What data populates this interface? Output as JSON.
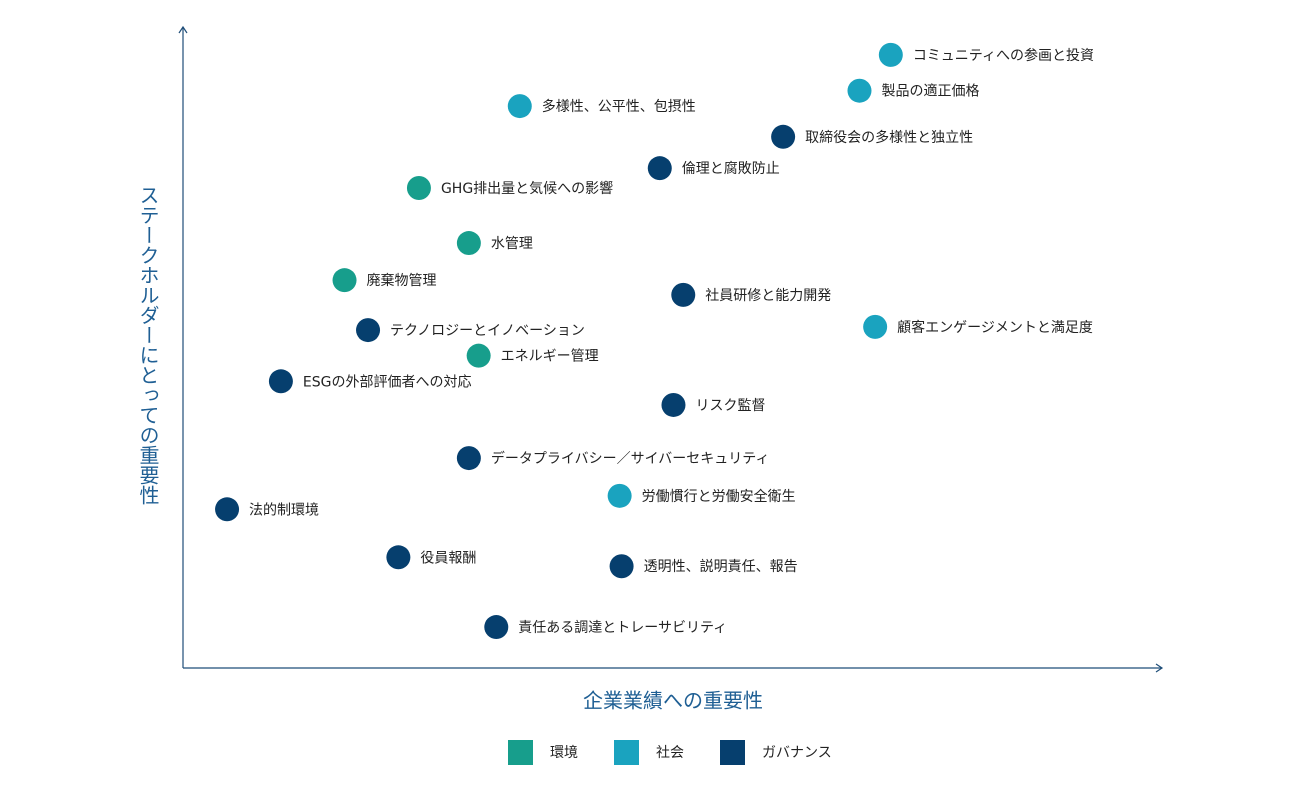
{
  "chart_data": {
    "type": "scatter",
    "x_label": "企業業績への重要性",
    "y_label": "ステークホルダーにとっての重要性",
    "xlim": [
      0,
      100
    ],
    "ylim": [
      0,
      100
    ],
    "series": [
      {
        "name": "環境",
        "color": "#179e8c",
        "x": [
          24.1,
          29.2,
          16.5,
          30.2
        ],
        "values": [
          75.0,
          66.4,
          60.6,
          48.8
        ],
        "labels": [
          "GHG排出量と気候への影響",
          "水管理",
          "廃棄物管理",
          "エネルギー管理"
        ]
      },
      {
        "name": "社会",
        "color": "#1aa3bf",
        "x": [
          72.3,
          69.1,
          34.4,
          70.7,
          44.6
        ],
        "values": [
          95.8,
          90.2,
          87.8,
          53.3,
          26.9
        ],
        "labels": [
          "コミュニティへの参画と投資",
          "製品の適正価格",
          "多様性、公平性、包摂性",
          "顧客エンゲージメントと満足度",
          "労働慣行と労働安全衛生"
        ]
      },
      {
        "name": "ガバナンス",
        "color": "#063f6e",
        "x": [
          61.3,
          48.7,
          51.1,
          18.9,
          10.0,
          50.1,
          29.2,
          4.5,
          22.0,
          44.8,
          32.0
        ],
        "values": [
          83.0,
          78.1,
          58.3,
          52.8,
          44.8,
          41.1,
          32.8,
          24.8,
          17.3,
          15.9,
          6.4
        ],
        "labels": [
          "取締役会の多様性と独立性",
          "倫理と腐敗防止",
          "社員研修と能力開発",
          "テクノロジーとイノベーション",
          "ESGの外部評価者への対応",
          "リスク監督",
          "データプライバシー／サイバーセキュリティ",
          "法的制環境",
          "役員報酬",
          "透明性、説明責任、報告",
          "責任ある調達とトレーサビリティ"
        ]
      }
    ]
  }
}
